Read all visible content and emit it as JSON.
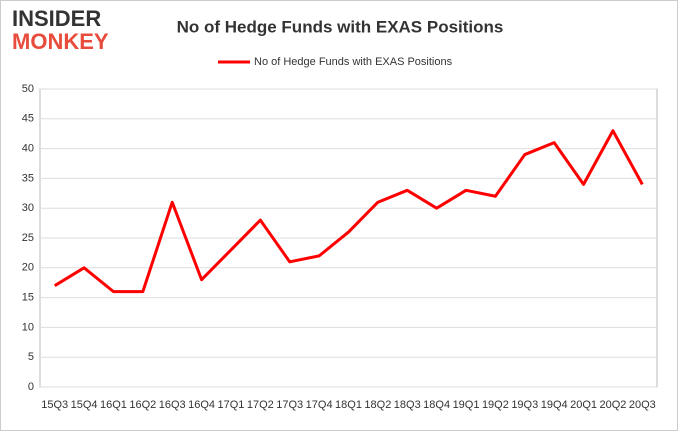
{
  "logo": {
    "line1": "INSIDER",
    "line2": "MONKEY"
  },
  "chart_data": {
    "type": "line",
    "title": "No of Hedge Funds with EXAS Positions",
    "categories": [
      "15Q3",
      "15Q4",
      "16Q1",
      "16Q2",
      "16Q3",
      "16Q4",
      "17Q1",
      "17Q2",
      "17Q3",
      "17Q4",
      "18Q1",
      "18Q2",
      "18Q3",
      "18Q4",
      "19Q1",
      "19Q2",
      "19Q3",
      "19Q4",
      "20Q1",
      "20Q2",
      "20Q3"
    ],
    "series": [
      {
        "name": "No of Hedge Funds with EXAS Positions",
        "color": "#ff0000",
        "values": [
          17,
          20,
          16,
          16,
          31,
          18,
          23,
          28,
          21,
          22,
          26,
          31,
          33,
          30,
          33,
          32,
          39,
          41,
          34,
          43,
          34
        ]
      }
    ],
    "ylim": [
      0,
      50
    ],
    "yticks": [
      0,
      5,
      10,
      15,
      20,
      25,
      30,
      35,
      40,
      45,
      50
    ],
    "grid": true,
    "legend": "top"
  }
}
